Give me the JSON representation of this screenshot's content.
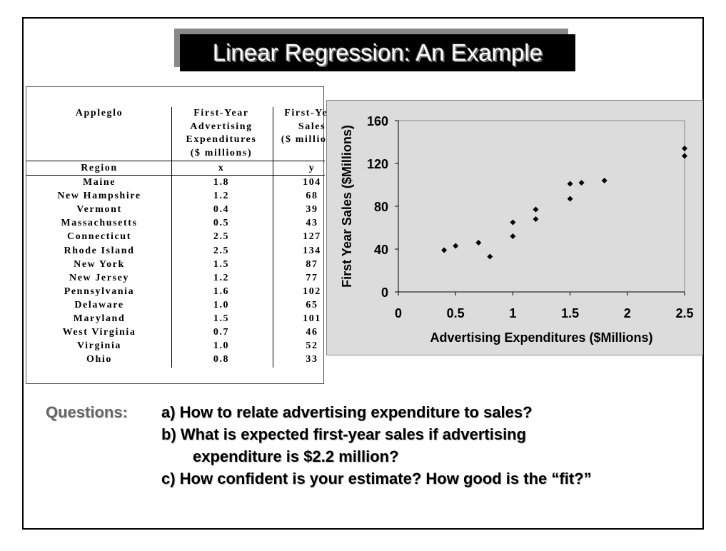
{
  "slide": {
    "title": "Linear Regression: An Example"
  },
  "table": {
    "headers": [
      [
        "Appleglo",
        "",
        "",
        ""
      ],
      [
        "First-Year",
        "Advertising",
        "Expenditures",
        "($ millions)"
      ],
      [
        "First-Year",
        "Sales",
        "($ millions)",
        ""
      ]
    ],
    "subheaders": [
      "Region",
      "x",
      "y"
    ],
    "rows": [
      [
        "Maine",
        "1.8",
        "104"
      ],
      [
        "New Hampshire",
        "1.2",
        "68"
      ],
      [
        "Vermont",
        "0.4",
        "39"
      ],
      [
        "Massachusetts",
        "0.5",
        "43"
      ],
      [
        "Connecticut",
        "2.5",
        "127"
      ],
      [
        "Rhode Island",
        "2.5",
        "134"
      ],
      [
        "New York",
        "1.5",
        "87"
      ],
      [
        "New Jersey",
        "1.2",
        "77"
      ],
      [
        "Pennsylvania",
        "1.6",
        "102"
      ],
      [
        "Delaware",
        "1.0",
        "65"
      ],
      [
        "Maryland",
        "1.5",
        "101"
      ],
      [
        "West Virginia",
        "0.7",
        "46"
      ],
      [
        "Virginia",
        "1.0",
        "52"
      ],
      [
        "Ohio",
        "0.8",
        "33"
      ]
    ]
  },
  "chart_data": {
    "type": "scatter",
    "xlabel": "Advertising Expenditures ($Millions)",
    "ylabel": "First Year Sales ($Millions)",
    "xlim": [
      0,
      2.5
    ],
    "ylim": [
      0,
      160
    ],
    "xticks": [
      "0",
      "0.5",
      "1",
      "1.5",
      "2",
      "2.5"
    ],
    "yticks": [
      "0",
      "40",
      "80",
      "120",
      "160"
    ],
    "points": [
      [
        1.8,
        104
      ],
      [
        1.2,
        68
      ],
      [
        0.4,
        39
      ],
      [
        0.5,
        43
      ],
      [
        2.5,
        127
      ],
      [
        2.5,
        134
      ],
      [
        1.5,
        87
      ],
      [
        1.2,
        77
      ],
      [
        1.6,
        102
      ],
      [
        1.0,
        65
      ],
      [
        1.5,
        101
      ],
      [
        0.7,
        46
      ],
      [
        1.0,
        52
      ],
      [
        0.8,
        33
      ]
    ],
    "grid": false,
    "marker": "diamond",
    "marker_color": "#000000",
    "background": "#dcdcdc"
  },
  "questions": {
    "label": "Questions:",
    "a": "a)  How to relate advertising expenditure to sales?",
    "b1": "b)  What is expected first-year sales if advertising",
    "b2": "expenditure is $2.2 million?",
    "c": "c)  How confident is your estimate?  How good is the “fit?”"
  }
}
